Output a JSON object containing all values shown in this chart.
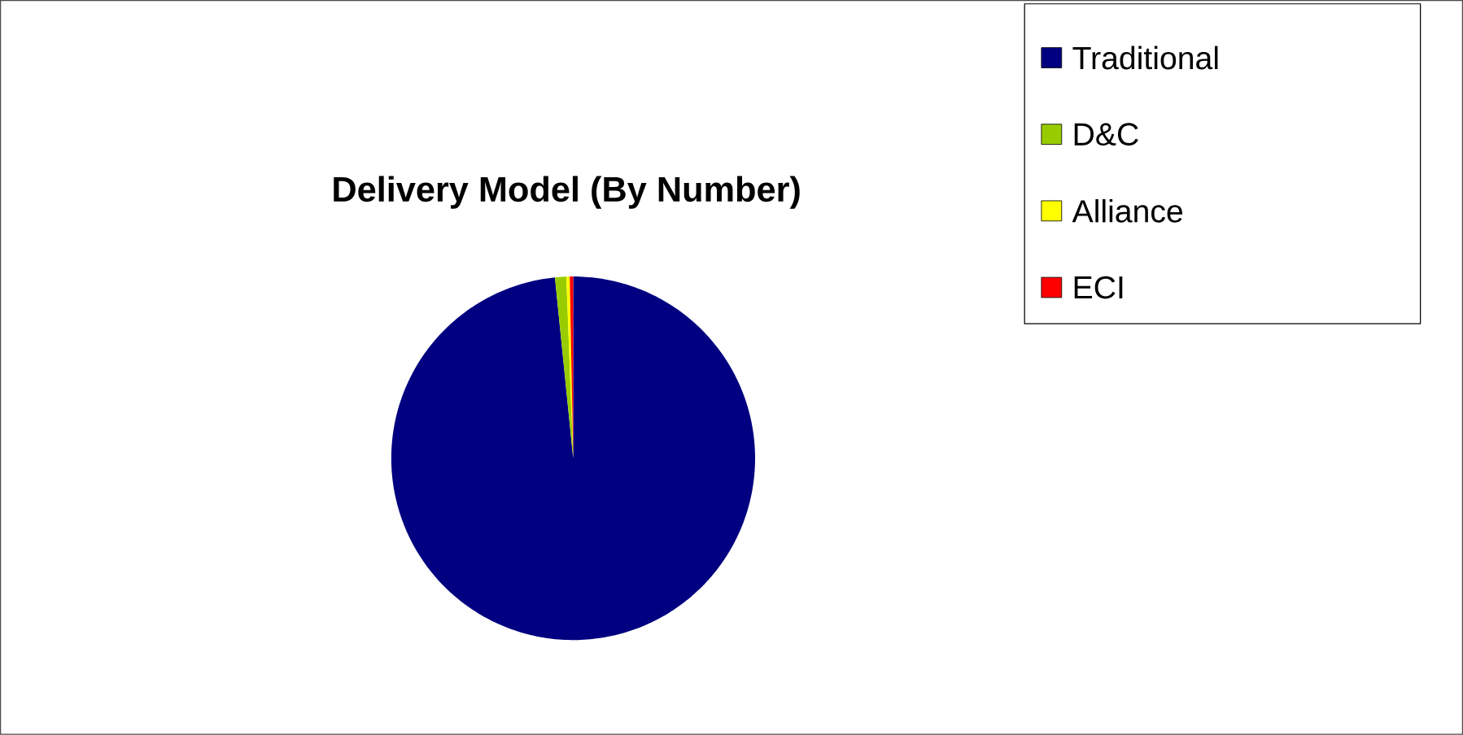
{
  "chart_data": {
    "type": "pie",
    "title": "Delivery Model (By Number)",
    "categories": [
      "Traditional",
      "D&C",
      "Alliance",
      "ECI"
    ],
    "values": [
      98.4,
      1.0,
      0.3,
      0.3
    ],
    "colors": [
      "#000080",
      "#99cc00",
      "#ffff00",
      "#ff0000"
    ],
    "legend": "top right"
  }
}
